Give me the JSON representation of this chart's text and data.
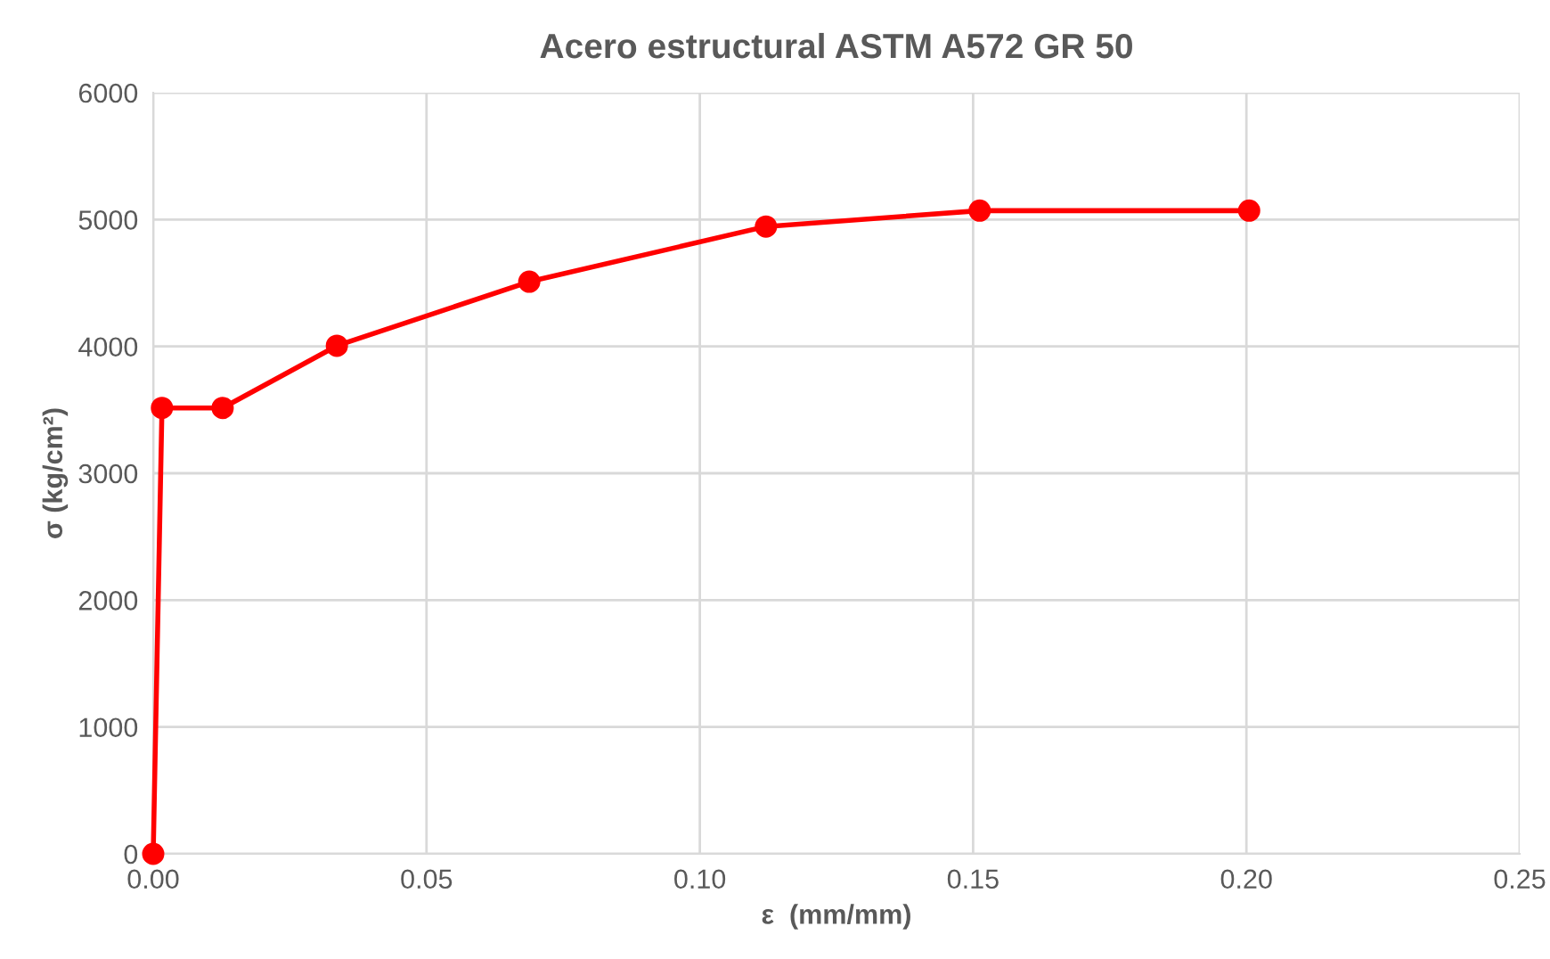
{
  "chart_data": {
    "type": "line",
    "title": "Acero estructural ASTM A572 GR 50",
    "xlabel": "ε  (mm/mm)",
    "ylabel": "σ (kg/cm²)",
    "x": [
      0,
      0.0016,
      0.0127,
      0.0336,
      0.0688,
      0.1121,
      0.1512,
      0.2005
    ],
    "series": [
      {
        "color": "#ff0000",
        "values": [
          0,
          3515,
          3515,
          4005,
          4510,
          4945,
          5070,
          5070
        ]
      }
    ],
    "xlim": [
      0,
      0.25
    ],
    "ylim": [
      0,
      6000
    ],
    "xticks": [
      {
        "value": 0,
        "label": "0.00"
      },
      {
        "value": 0.05,
        "label": "0.05"
      },
      {
        "value": 0.1,
        "label": "0.10"
      },
      {
        "value": 0.15,
        "label": "0.15"
      },
      {
        "value": 0.2,
        "label": "0.20"
      },
      {
        "value": 0.25,
        "label": "0.25"
      }
    ],
    "yticks": [
      0,
      1000,
      2000,
      3000,
      4000,
      5000,
      6000
    ],
    "grid": true,
    "marker": "circle",
    "line_style": "solid"
  }
}
